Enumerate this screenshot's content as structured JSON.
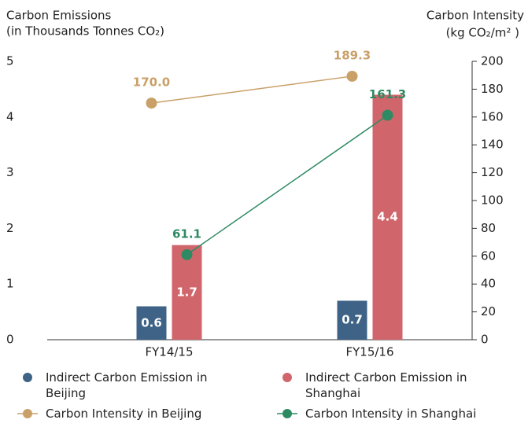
{
  "chart_data": {
    "type": "bar",
    "y_title": [
      "Carbon Emissions",
      "(in Thousands Tonnes CO₂)"
    ],
    "y2_title": [
      "Carbon Intensity",
      "(kg CO₂/m² )"
    ],
    "categories": [
      "FY14/15",
      "FY15/16"
    ],
    "ylim": [
      0,
      5
    ],
    "yticks": [
      0,
      1,
      2,
      3,
      4,
      5
    ],
    "y2lim": [
      0,
      200
    ],
    "y2ticks": [
      0,
      20,
      40,
      60,
      80,
      100,
      120,
      140,
      160,
      180,
      200
    ],
    "series": [
      {
        "name": "Indirect Carbon Emission in Beijing",
        "color": "#3e6386",
        "values": [
          0.6,
          0.7
        ]
      },
      {
        "name": "Indirect Carbon Emission in Shanghai",
        "color": "#d0666b",
        "values": [
          1.7,
          4.4
        ]
      },
      {
        "name": "Carbon Intensity in Beijing",
        "color": "#c9a068",
        "type": "line",
        "axis": "y2",
        "values": [
          170,
          189.3
        ],
        "value_labels": [
          "170.0",
          "189.3"
        ]
      },
      {
        "name": "Carbon Intensity in Shanghai",
        "color": "#2e8a62",
        "type": "line",
        "axis": "y2",
        "values": [
          61.1,
          161.3
        ]
      }
    ]
  }
}
